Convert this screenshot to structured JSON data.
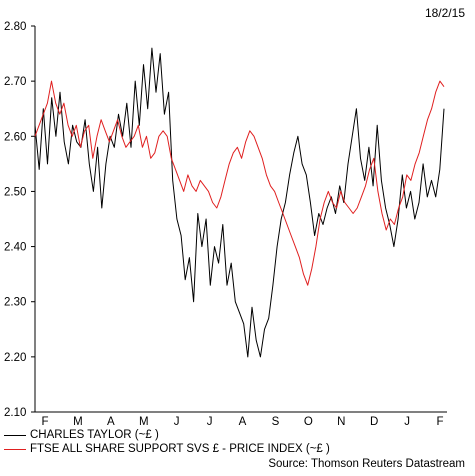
{
  "header": {
    "date": "18/2/15"
  },
  "footer": {
    "source": "Source: Thomson Reuters Datastream"
  },
  "chart_data": {
    "type": "line",
    "title": "",
    "xlabel": "",
    "ylabel": "",
    "ylim": [
      2.1,
      2.8
    ],
    "yticks": [
      "2.80",
      "2.70",
      "2.60",
      "2.50",
      "2.40",
      "2.30",
      "2.20",
      "2.10"
    ],
    "xticks": [
      "F",
      "M",
      "A",
      "M",
      "J",
      "J",
      "A",
      "S",
      "O",
      "N",
      "D",
      "J",
      "F"
    ],
    "grid": false,
    "legend": "bottom-left",
    "colors": {
      "charles_taylor": "#000000",
      "ftse_support": "#e02020"
    },
    "series": [
      {
        "name": "CHARLES TAYLOR (~£ )",
        "color": "#000000",
        "values": [
          2.62,
          2.54,
          2.65,
          2.55,
          2.67,
          2.6,
          2.68,
          2.59,
          2.55,
          2.62,
          2.59,
          2.58,
          2.63,
          2.55,
          2.5,
          2.58,
          2.47,
          2.55,
          2.6,
          2.58,
          2.64,
          2.6,
          2.66,
          2.58,
          2.7,
          2.62,
          2.73,
          2.65,
          2.76,
          2.68,
          2.75,
          2.64,
          2.68,
          2.52,
          2.45,
          2.42,
          2.34,
          2.38,
          2.3,
          2.46,
          2.4,
          2.45,
          2.33,
          2.4,
          2.37,
          2.44,
          2.33,
          2.37,
          2.3,
          2.28,
          2.26,
          2.2,
          2.29,
          2.23,
          2.2,
          2.25,
          2.27,
          2.33,
          2.4,
          2.45,
          2.48,
          2.53,
          2.57,
          2.6,
          2.55,
          2.53,
          2.48,
          2.42,
          2.46,
          2.44,
          2.47,
          2.49,
          2.46,
          2.51,
          2.48,
          2.55,
          2.6,
          2.65,
          2.56,
          2.52,
          2.58,
          2.51,
          2.62,
          2.52,
          2.47,
          2.44,
          2.4,
          2.45,
          2.53,
          2.47,
          2.5,
          2.45,
          2.48,
          2.55,
          2.49,
          2.52,
          2.49,
          2.54,
          2.65
        ]
      },
      {
        "name": "FTSE ALL SHARE SUPPORT SVS £ - PRICE INDEX (~£ )",
        "color": "#e02020",
        "values": [
          2.6,
          2.62,
          2.64,
          2.66,
          2.7,
          2.66,
          2.64,
          2.66,
          2.62,
          2.6,
          2.62,
          2.58,
          2.61,
          2.62,
          2.56,
          2.6,
          2.63,
          2.61,
          2.59,
          2.61,
          2.63,
          2.6,
          2.58,
          2.59,
          2.6,
          2.62,
          2.58,
          2.6,
          2.56,
          2.57,
          2.6,
          2.61,
          2.6,
          2.56,
          2.54,
          2.52,
          2.5,
          2.53,
          2.51,
          2.5,
          2.52,
          2.51,
          2.5,
          2.48,
          2.47,
          2.49,
          2.52,
          2.55,
          2.57,
          2.58,
          2.56,
          2.59,
          2.61,
          2.6,
          2.58,
          2.56,
          2.53,
          2.51,
          2.5,
          2.48,
          2.46,
          2.44,
          2.42,
          2.4,
          2.38,
          2.35,
          2.33,
          2.36,
          2.4,
          2.45,
          2.48,
          2.5,
          2.48,
          2.47,
          2.5,
          2.48,
          2.47,
          2.46,
          2.47,
          2.49,
          2.51,
          2.54,
          2.56,
          2.5,
          2.46,
          2.43,
          2.45,
          2.44,
          2.47,
          2.49,
          2.53,
          2.52,
          2.55,
          2.57,
          2.6,
          2.63,
          2.65,
          2.68,
          2.7,
          2.69
        ]
      }
    ]
  }
}
